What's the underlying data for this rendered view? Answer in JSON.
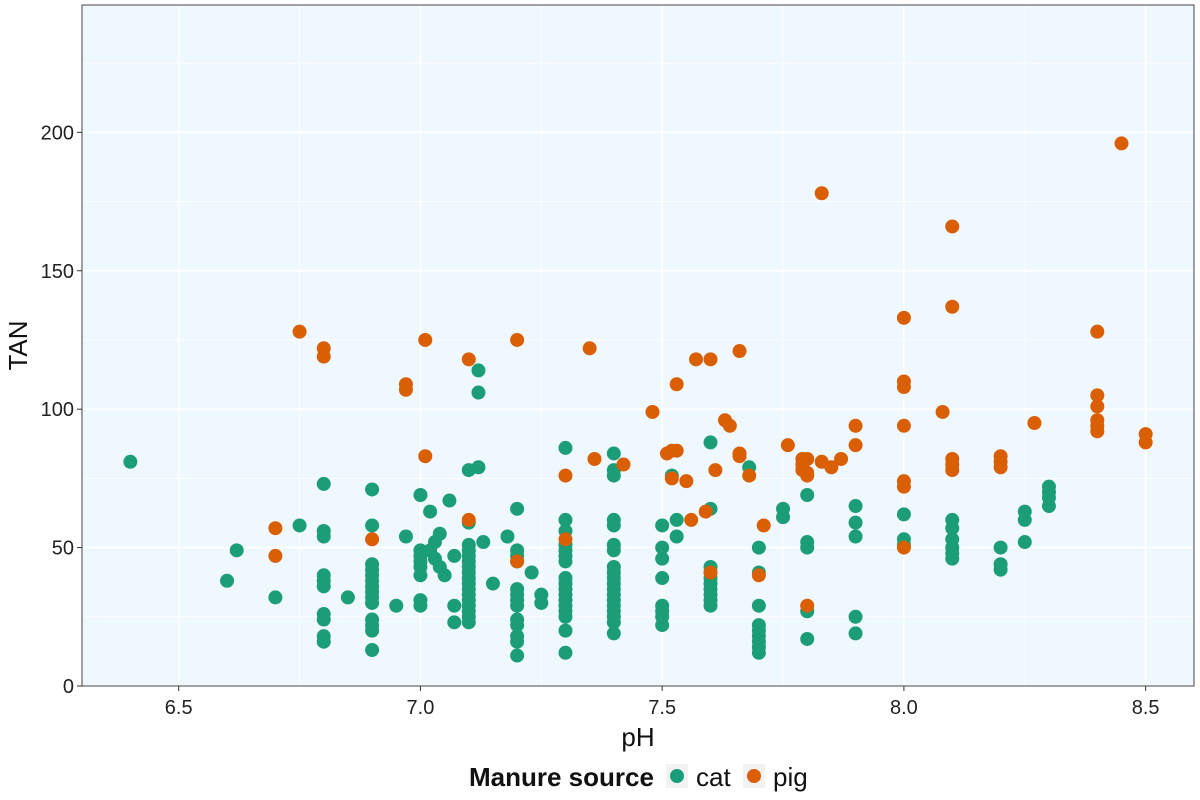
{
  "chart_data": {
    "type": "scatter",
    "xlabel": "pH",
    "ylabel": "TAN",
    "xlim": [
      6.3,
      8.6
    ],
    "ylim": [
      0,
      246
    ],
    "x_ticks": [
      6.5,
      7.0,
      7.5,
      8.0,
      8.5
    ],
    "x_tick_labels": [
      "6.5",
      "7.0",
      "7.5",
      "8.0",
      "8.5"
    ],
    "y_ticks": [
      0,
      50,
      100,
      150,
      200
    ],
    "y_tick_labels": [
      "0",
      "50",
      "100",
      "150",
      "200"
    ],
    "grid": true,
    "legend": {
      "title": "Manure source",
      "position": "bottom"
    },
    "colors": {
      "cat": "#1b9e77",
      "pig": "#d95f02",
      "panel": "#f0f8ff",
      "grid": "#ffffff"
    },
    "series": [
      {
        "name": "cat",
        "color": "#1b9e77",
        "points": [
          [
            6.4,
            81
          ],
          [
            6.6,
            38
          ],
          [
            6.62,
            49
          ],
          [
            6.7,
            32
          ],
          [
            6.75,
            58
          ],
          [
            6.8,
            73
          ],
          [
            6.8,
            56
          ],
          [
            6.8,
            54
          ],
          [
            6.8,
            40
          ],
          [
            6.8,
            38
          ],
          [
            6.8,
            36
          ],
          [
            6.8,
            26
          ],
          [
            6.8,
            24
          ],
          [
            6.8,
            18
          ],
          [
            6.8,
            16
          ],
          [
            6.85,
            32
          ],
          [
            6.9,
            71
          ],
          [
            6.9,
            58
          ],
          [
            6.9,
            44
          ],
          [
            6.9,
            42
          ],
          [
            6.9,
            40
          ],
          [
            6.9,
            38
          ],
          [
            6.9,
            36
          ],
          [
            6.9,
            34
          ],
          [
            6.9,
            32
          ],
          [
            6.9,
            30
          ],
          [
            6.9,
            24
          ],
          [
            6.9,
            22
          ],
          [
            6.9,
            20
          ],
          [
            6.9,
            13
          ],
          [
            6.95,
            29
          ],
          [
            6.97,
            54
          ],
          [
            7.0,
            69
          ],
          [
            7.0,
            49
          ],
          [
            7.0,
            47
          ],
          [
            7.0,
            45
          ],
          [
            7.0,
            43
          ],
          [
            7.0,
            40
          ],
          [
            7.0,
            31
          ],
          [
            7.0,
            29
          ],
          [
            7.02,
            63
          ],
          [
            7.02,
            49
          ],
          [
            7.03,
            52
          ],
          [
            7.03,
            46
          ],
          [
            7.04,
            55
          ],
          [
            7.04,
            43
          ],
          [
            7.05,
            40
          ],
          [
            7.06,
            67
          ],
          [
            7.07,
            47
          ],
          [
            7.07,
            29
          ],
          [
            7.07,
            23
          ],
          [
            7.1,
            78
          ],
          [
            7.1,
            59
          ],
          [
            7.1,
            51
          ],
          [
            7.1,
            49
          ],
          [
            7.1,
            47
          ],
          [
            7.1,
            45
          ],
          [
            7.1,
            43
          ],
          [
            7.1,
            41
          ],
          [
            7.1,
            39
          ],
          [
            7.1,
            37
          ],
          [
            7.1,
            35
          ],
          [
            7.1,
            33
          ],
          [
            7.1,
            31
          ],
          [
            7.1,
            29
          ],
          [
            7.1,
            27
          ],
          [
            7.1,
            25
          ],
          [
            7.1,
            23
          ],
          [
            7.12,
            114
          ],
          [
            7.12,
            106
          ],
          [
            7.12,
            79
          ],
          [
            7.13,
            52
          ],
          [
            7.15,
            37
          ],
          [
            7.18,
            54
          ],
          [
            7.2,
            64
          ],
          [
            7.2,
            49
          ],
          [
            7.2,
            47
          ],
          [
            7.2,
            45
          ],
          [
            7.2,
            35
          ],
          [
            7.2,
            33
          ],
          [
            7.2,
            31
          ],
          [
            7.2,
            29
          ],
          [
            7.2,
            24
          ],
          [
            7.2,
            22
          ],
          [
            7.2,
            18
          ],
          [
            7.2,
            16
          ],
          [
            7.2,
            11
          ],
          [
            7.23,
            41
          ],
          [
            7.25,
            33
          ],
          [
            7.25,
            30
          ],
          [
            7.3,
            86
          ],
          [
            7.3,
            60
          ],
          [
            7.3,
            56
          ],
          [
            7.3,
            51
          ],
          [
            7.3,
            49
          ],
          [
            7.3,
            47
          ],
          [
            7.3,
            45
          ],
          [
            7.3,
            39
          ],
          [
            7.3,
            37
          ],
          [
            7.3,
            35
          ],
          [
            7.3,
            33
          ],
          [
            7.3,
            31
          ],
          [
            7.3,
            29
          ],
          [
            7.3,
            27
          ],
          [
            7.3,
            25
          ],
          [
            7.3,
            20
          ],
          [
            7.3,
            12
          ],
          [
            7.4,
            84
          ],
          [
            7.4,
            78
          ],
          [
            7.4,
            76
          ],
          [
            7.4,
            60
          ],
          [
            7.4,
            58
          ],
          [
            7.4,
            51
          ],
          [
            7.4,
            49
          ],
          [
            7.4,
            43
          ],
          [
            7.4,
            41
          ],
          [
            7.4,
            39
          ],
          [
            7.4,
            37
          ],
          [
            7.4,
            35
          ],
          [
            7.4,
            33
          ],
          [
            7.4,
            31
          ],
          [
            7.4,
            29
          ],
          [
            7.4,
            27
          ],
          [
            7.4,
            25
          ],
          [
            7.4,
            23
          ],
          [
            7.4,
            19
          ],
          [
            7.5,
            58
          ],
          [
            7.5,
            50
          ],
          [
            7.5,
            46
          ],
          [
            7.5,
            39
          ],
          [
            7.5,
            29
          ],
          [
            7.5,
            27
          ],
          [
            7.5,
            25
          ],
          [
            7.5,
            22
          ],
          [
            7.52,
            76
          ],
          [
            7.53,
            60
          ],
          [
            7.53,
            54
          ],
          [
            7.6,
            88
          ],
          [
            7.6,
            64
          ],
          [
            7.6,
            43
          ],
          [
            7.6,
            41
          ],
          [
            7.6,
            39
          ],
          [
            7.6,
            37
          ],
          [
            7.6,
            35
          ],
          [
            7.6,
            33
          ],
          [
            7.6,
            31
          ],
          [
            7.6,
            29
          ],
          [
            7.68,
            79
          ],
          [
            7.7,
            50
          ],
          [
            7.7,
            41
          ],
          [
            7.7,
            29
          ],
          [
            7.7,
            22
          ],
          [
            7.7,
            20
          ],
          [
            7.7,
            18
          ],
          [
            7.7,
            16
          ],
          [
            7.7,
            14
          ],
          [
            7.7,
            12
          ],
          [
            7.75,
            64
          ],
          [
            7.75,
            61
          ],
          [
            7.8,
            69
          ],
          [
            7.8,
            52
          ],
          [
            7.8,
            50
          ],
          [
            7.8,
            27
          ],
          [
            7.8,
            17
          ],
          [
            7.9,
            65
          ],
          [
            7.9,
            59
          ],
          [
            7.9,
            54
          ],
          [
            7.9,
            25
          ],
          [
            7.9,
            19
          ],
          [
            8.0,
            62
          ],
          [
            8.0,
            53
          ],
          [
            8.0,
            51
          ],
          [
            8.1,
            60
          ],
          [
            8.1,
            57
          ],
          [
            8.1,
            53
          ],
          [
            8.1,
            50
          ],
          [
            8.1,
            48
          ],
          [
            8.1,
            46
          ],
          [
            8.2,
            50
          ],
          [
            8.2,
            44
          ],
          [
            8.2,
            42
          ],
          [
            8.25,
            63
          ],
          [
            8.25,
            60
          ],
          [
            8.25,
            52
          ],
          [
            8.3,
            72
          ],
          [
            8.3,
            70
          ],
          [
            8.3,
            68
          ],
          [
            8.3,
            65
          ]
        ]
      },
      {
        "name": "pig",
        "color": "#d95f02",
        "points": [
          [
            6.7,
            57
          ],
          [
            6.7,
            47
          ],
          [
            6.75,
            128
          ],
          [
            6.8,
            122
          ],
          [
            6.8,
            119
          ],
          [
            6.9,
            53
          ],
          [
            6.97,
            109
          ],
          [
            6.97,
            107
          ],
          [
            7.01,
            125
          ],
          [
            7.01,
            83
          ],
          [
            7.1,
            118
          ],
          [
            7.1,
            60
          ],
          [
            7.2,
            125
          ],
          [
            7.2,
            45
          ],
          [
            7.3,
            76
          ],
          [
            7.3,
            53
          ],
          [
            7.35,
            122
          ],
          [
            7.36,
            82
          ],
          [
            7.42,
            80
          ],
          [
            7.48,
            99
          ],
          [
            7.51,
            84
          ],
          [
            7.52,
            85
          ],
          [
            7.52,
            75
          ],
          [
            7.53,
            109
          ],
          [
            7.53,
            85
          ],
          [
            7.55,
            74
          ],
          [
            7.56,
            60
          ],
          [
            7.57,
            118
          ],
          [
            7.59,
            63
          ],
          [
            7.6,
            118
          ],
          [
            7.6,
            41
          ],
          [
            7.61,
            78
          ],
          [
            7.63,
            96
          ],
          [
            7.64,
            94
          ],
          [
            7.66,
            121
          ],
          [
            7.66,
            84
          ],
          [
            7.66,
            83
          ],
          [
            7.68,
            76
          ],
          [
            7.7,
            40
          ],
          [
            7.71,
            58
          ],
          [
            7.76,
            87
          ],
          [
            7.79,
            82
          ],
          [
            7.79,
            80
          ],
          [
            7.79,
            78
          ],
          [
            7.8,
            77
          ],
          [
            7.8,
            76
          ],
          [
            7.8,
            82
          ],
          [
            7.8,
            29
          ],
          [
            7.83,
            178
          ],
          [
            7.83,
            81
          ],
          [
            7.85,
            79
          ],
          [
            7.87,
            82
          ],
          [
            7.9,
            94
          ],
          [
            7.9,
            87
          ],
          [
            8.0,
            133
          ],
          [
            8.0,
            110
          ],
          [
            8.0,
            108
          ],
          [
            8.0,
            94
          ],
          [
            8.0,
            74
          ],
          [
            8.0,
            72
          ],
          [
            8.0,
            50
          ],
          [
            8.08,
            99
          ],
          [
            8.1,
            166
          ],
          [
            8.1,
            137
          ],
          [
            8.1,
            82
          ],
          [
            8.1,
            80
          ],
          [
            8.1,
            78
          ],
          [
            8.2,
            83
          ],
          [
            8.2,
            81
          ],
          [
            8.2,
            79
          ],
          [
            8.27,
            95
          ],
          [
            8.4,
            128
          ],
          [
            8.4,
            105
          ],
          [
            8.4,
            101
          ],
          [
            8.4,
            96
          ],
          [
            8.4,
            94
          ],
          [
            8.4,
            92
          ],
          [
            8.45,
            196
          ],
          [
            8.5,
            91
          ],
          [
            8.5,
            88
          ]
        ]
      }
    ]
  }
}
